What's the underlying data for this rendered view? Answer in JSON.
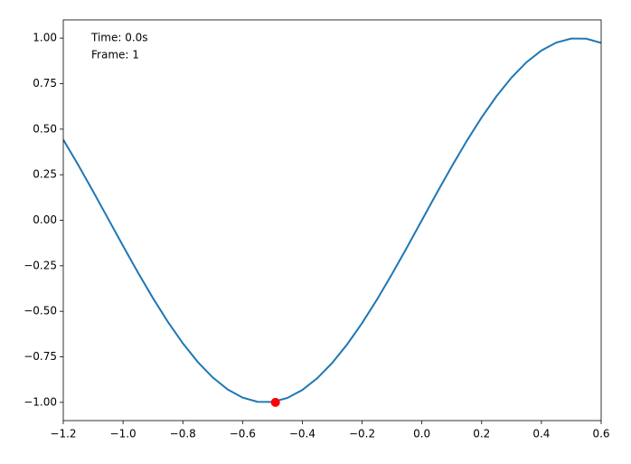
{
  "chart_data": {
    "type": "line",
    "annotations": [
      "Time: 0.0s",
      "Frame: 1"
    ],
    "x": [
      -1.2,
      -1.15,
      -1.1,
      -1.05,
      -1.0,
      -0.95,
      -0.9,
      -0.85,
      -0.8,
      -0.75,
      -0.7,
      -0.65,
      -0.6,
      -0.55,
      -0.5,
      -0.45,
      -0.4,
      -0.35,
      -0.3,
      -0.25,
      -0.2,
      -0.15,
      -0.1,
      -0.05,
      0,
      0.05,
      0.1,
      0.15,
      0.2,
      0.25,
      0.3,
      0.35,
      0.4,
      0.45,
      0.5,
      0.55,
      0.6
    ],
    "series": [
      {
        "color": "#1f77b4",
        "values": [
          0.4425,
          0.3035,
          0.1577,
          0.0084,
          -0.1411,
          -0.2875,
          -0.4274,
          -0.5577,
          -0.6755,
          -0.7781,
          -0.8632,
          -0.929,
          -0.9738,
          -0.9969,
          -0.9975,
          -0.9757,
          -0.932,
          -0.8674,
          -0.7833,
          -0.6816,
          -0.5646,
          -0.435,
          -0.2955,
          -0.1494,
          0,
          0.1494,
          0.2955,
          0.435,
          0.5646,
          0.6816,
          0.7833,
          0.8674,
          0.932,
          0.9757,
          0.9975,
          0.9969,
          0.9738
        ]
      }
    ],
    "point": {
      "x": -0.49,
      "y": -1.0,
      "color": "#ff0000"
    },
    "xlim": [
      -1.2,
      0.6
    ],
    "ylim": [
      -1.1,
      1.1
    ],
    "xticks": [
      {
        "value": -1.2,
        "label": "−1.2"
      },
      {
        "value": -1.0,
        "label": "−1.0"
      },
      {
        "value": -0.8,
        "label": "−0.8"
      },
      {
        "value": -0.6,
        "label": "−0.6"
      },
      {
        "value": -0.4,
        "label": "−0.4"
      },
      {
        "value": -0.2,
        "label": "−0.2"
      },
      {
        "value": 0,
        "label": "0.0"
      },
      0.2,
      0.4,
      0.6
    ],
    "yticks": [
      {
        "value": -1.0,
        "label": "−1.00"
      },
      {
        "value": -0.75,
        "label": "−0.75"
      },
      {
        "value": -0.5,
        "label": "−0.50"
      },
      {
        "value": -0.25,
        "label": "−0.25"
      },
      {
        "value": 0,
        "label": "0.00"
      },
      0.25,
      {
        "value": 0.5,
        "label": "0.50"
      },
      0.75,
      {
        "value": 1.0,
        "label": "1.00"
      }
    ],
    "grid": false
  }
}
